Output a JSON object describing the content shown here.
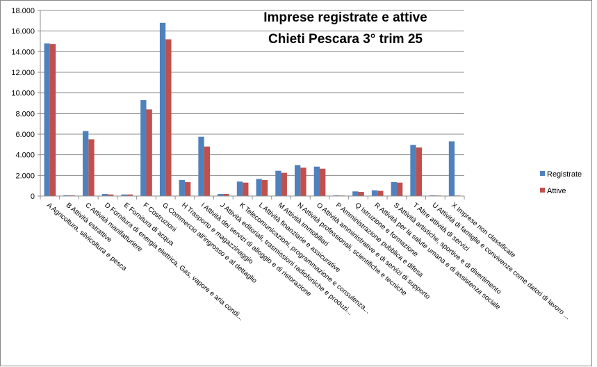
{
  "chart_data": {
    "type": "bar",
    "title": [
      "Imprese registrate e attive",
      "Chieti Pescara 3° trim 25"
    ],
    "xlabel": "",
    "ylabel": "",
    "ylim": [
      0,
      18000
    ],
    "yticks": [
      0,
      2000,
      4000,
      6000,
      8000,
      10000,
      12000,
      14000,
      16000,
      18000
    ],
    "ytick_labels": [
      "0",
      "2.000",
      "4.000",
      "6.000",
      "8.000",
      "10.000",
      "12.000",
      "14.000",
      "16.000",
      "18.000"
    ],
    "grid": true,
    "legend_position": "right",
    "categories": [
      "A Agricoltura, silvicoltura e pesca",
      "B Attività estrattive",
      "C Attività manifatturiere",
      "D Fornitura di energia elettrica, Gas, vapore e aria condi...",
      "E Fornitura di acqua",
      "F Costruzioni",
      "G Commercio all'ingrosso e al dettaglio",
      "H Trasporto e magazzinaggio",
      "I Attività dei servizi di alloggio e di ristorazione",
      "J Attività editoriali, trasmissioni radiofoniche e produzi...",
      "K Telecomunicazioni, programmazione e consulenza...",
      "L Attività finanziarie e assicurative",
      "M Attività immobiliari",
      "N Attività professionali, scientifiche e tecniche",
      "O Attività amministrative e di servizi di supporto",
      "P Amministrazione pubblica e difesa",
      "Q Istruzione e formazione",
      "R Attività per la salute umana e di assistenza sociale",
      "S Attività artistiche, sportive e di divertimento",
      "T Altre attività di servizi",
      "U Attività di famiglie e convivenze come datori di lavoro ...",
      "X Imprese non classificate"
    ],
    "series": [
      {
        "name": "Registrate",
        "color": "#4F81BD",
        "values": [
          14800,
          70,
          6300,
          200,
          150,
          9300,
          16800,
          1550,
          5750,
          200,
          1400,
          1650,
          2450,
          3000,
          2850,
          60,
          450,
          550,
          1350,
          4950,
          60,
          5300
        ]
      },
      {
        "name": "Attive",
        "color": "#C0504D",
        "values": [
          14750,
          60,
          5500,
          150,
          150,
          8400,
          15200,
          1350,
          4800,
          200,
          1300,
          1550,
          2250,
          2750,
          2650,
          50,
          400,
          500,
          1300,
          4700,
          50,
          50
        ]
      }
    ]
  }
}
